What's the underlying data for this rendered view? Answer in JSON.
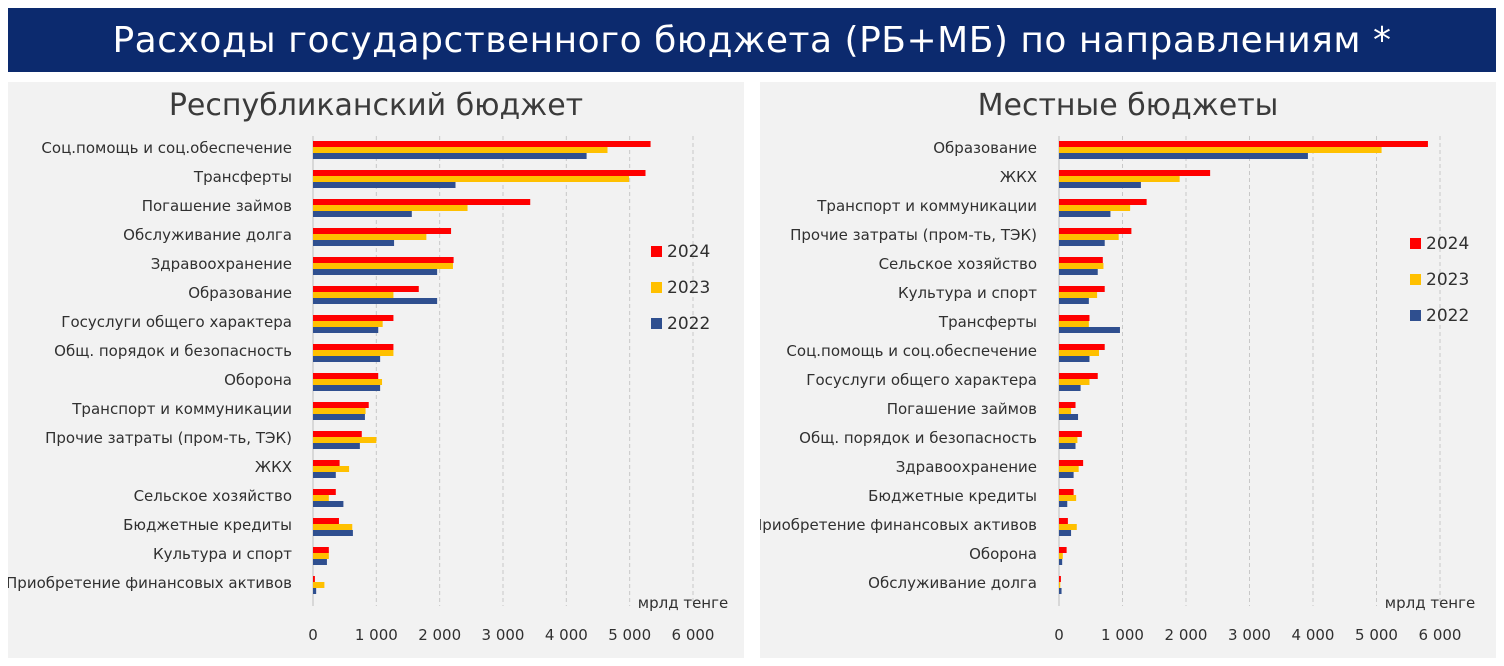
{
  "page": {
    "title": "Расходы государственного бюджета (РБ+МБ) по направлениям *"
  },
  "colors": {
    "banner": "#0c2a6e",
    "panel_bg": "#f2f2f2",
    "2024": "#ff0000",
    "2023": "#ffc000",
    "2022": "#2f4f8f",
    "gridline": "#c8c8c8"
  },
  "chart_data": [
    {
      "type": "bar",
      "orientation": "horizontal",
      "title": "Республиканский бюджет",
      "unit": "мрлд тенге",
      "xlim": [
        0,
        6000
      ],
      "xticks": [
        "0",
        "1 000",
        "2 000",
        "3 000",
        "4 000",
        "5 000",
        "6 000"
      ],
      "grid": "vertical dashed",
      "legend_position": "right",
      "categories": [
        "Соц.помощь и соц.обеспечение",
        "Трансферты",
        "Погашение займов",
        "Обслуживание долга",
        "Здравоохранение",
        "Образование",
        "Госуслуги общего характера",
        "Общ. порядок и безопасность",
        "Оборона",
        "Транспорт и коммуникации",
        "Прочие затраты (пром-ть, ТЭК)",
        "ЖКХ",
        "Сельское хозяйство",
        "Бюджетные кредиты",
        "Культура и спорт",
        "Приобретение финансовых активов"
      ],
      "series": [
        {
          "name": "2024",
          "values": [
            5330,
            5250,
            3430,
            2180,
            2220,
            1670,
            1270,
            1270,
            1030,
            880,
            770,
            420,
            360,
            410,
            250,
            30
          ]
        },
        {
          "name": "2023",
          "values": [
            4650,
            4990,
            2440,
            1790,
            2210,
            1270,
            1100,
            1270,
            1090,
            830,
            1000,
            570,
            250,
            620,
            250,
            180
          ]
        },
        {
          "name": "2022",
          "values": [
            4320,
            2250,
            1560,
            1280,
            1960,
            1960,
            1030,
            1060,
            1060,
            820,
            740,
            360,
            480,
            630,
            220,
            50
          ]
        }
      ]
    },
    {
      "type": "bar",
      "orientation": "horizontal",
      "title": "Местные бюджеты",
      "unit": "мрлд тенге",
      "xlim": [
        0,
        6000
      ],
      "xticks": [
        "0",
        "1 000",
        "2 000",
        "3 000",
        "4 000",
        "5 000",
        "6 000"
      ],
      "grid": "vertical dashed",
      "legend_position": "right",
      "categories": [
        "Образование",
        "ЖКХ",
        "Транспорт и коммуникации",
        "Прочие затраты (пром-ть, ТЭК)",
        "Сельское хозяйство",
        "Культура и спорт",
        "Трансферты",
        "Соц.помощь и соц.обеспечение",
        "Госуслуги общего характера",
        "Погашение займов",
        "Общ. порядок и безопасность",
        "Здравоохранение",
        "Бюджетные кредиты",
        "Приобретение финансовых активов",
        "Оборона",
        "Обслуживание долга"
      ],
      "series": [
        {
          "name": "2024",
          "values": [
            5810,
            2380,
            1380,
            1140,
            690,
            720,
            480,
            720,
            610,
            260,
            360,
            380,
            230,
            140,
            120,
            30
          ]
        },
        {
          "name": "2023",
          "values": [
            5080,
            1900,
            1120,
            940,
            700,
            600,
            470,
            630,
            480,
            190,
            290,
            310,
            270,
            280,
            60,
            20
          ]
        },
        {
          "name": "2022",
          "values": [
            3920,
            1290,
            810,
            720,
            610,
            470,
            960,
            480,
            340,
            300,
            260,
            230,
            130,
            190,
            50,
            40
          ]
        }
      ]
    }
  ]
}
